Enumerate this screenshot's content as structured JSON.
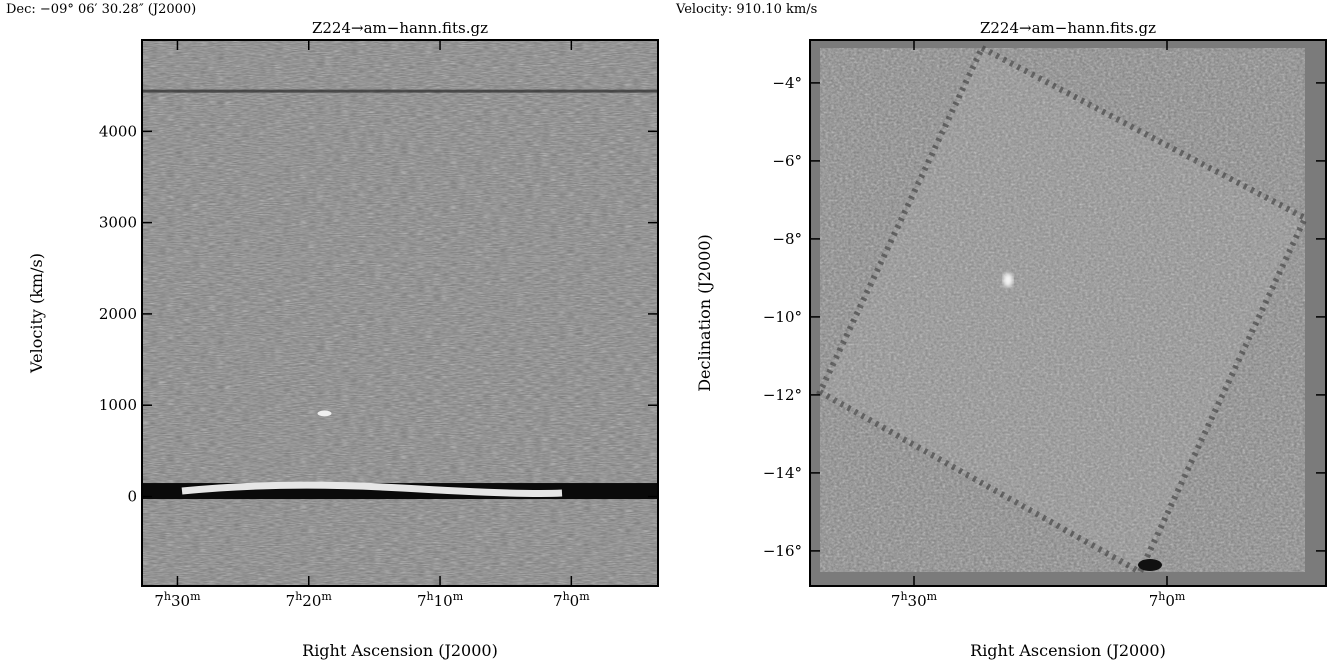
{
  "readouts": {
    "dec": "Dec: −09° 06′ 30.28″ (J2000)",
    "velocity": "Velocity: 910.10 km/s"
  },
  "chart_data": [
    {
      "type": "heatmap",
      "title": "Z224→am−hann.fits.gz",
      "xlabel": "Right Ascension (J2000)",
      "ylabel": "Velocity (km/s)",
      "x_ticks": [
        {
          "value": 30,
          "h": "7",
          "m": "30"
        },
        {
          "value": 20,
          "h": "7",
          "m": "20"
        },
        {
          "value": 10,
          "h": "7",
          "m": "10"
        },
        {
          "value": 0,
          "h": "7",
          "m": "0"
        }
      ],
      "x_range_minutes": [
        32.7,
        -6.6
      ],
      "y_ticks": [
        0,
        1000,
        2000,
        3000,
        4000
      ],
      "ylim": [
        -980,
        5000
      ],
      "features": {
        "bright_band_velocity": 60,
        "dark_stripe_velocity": 4440,
        "faint_stripe_velocity": 2600,
        "source": {
          "ra_minutes": 18.8,
          "velocity": 910
        }
      },
      "colormap": "gray"
    },
    {
      "type": "heatmap",
      "title": "Z224→am−hann.fits.gz",
      "xlabel": "Right Ascension (J2000)",
      "ylabel": "Declination (J2000)",
      "x_ticks": [
        {
          "value": 30,
          "h": "7",
          "m": "30"
        },
        {
          "value": 0,
          "h": "7",
          "m": "0"
        }
      ],
      "y_ticks": [
        {
          "value": -4,
          "label": "−4°"
        },
        {
          "value": -6,
          "label": "−6°"
        },
        {
          "value": -8,
          "label": "−8°"
        },
        {
          "value": -10,
          "label": "−10°"
        },
        {
          "value": -12,
          "label": "−12°"
        },
        {
          "value": -14,
          "label": "−14°"
        },
        {
          "value": -16,
          "label": "−16°"
        }
      ],
      "ylim": [
        -16.9,
        -2.9
      ],
      "features": {
        "source": {
          "label": "",
          "dec": -9.1
        }
      },
      "colormap": "gray"
    }
  ]
}
